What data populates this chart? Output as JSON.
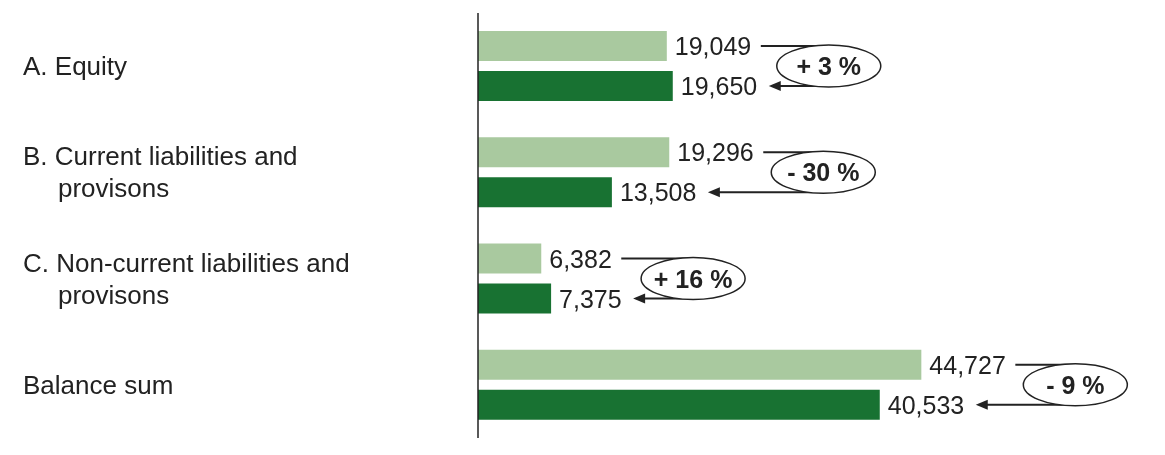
{
  "chart_data": {
    "type": "bar",
    "orientation": "horizontal",
    "categories": [
      "A. Equity",
      "B. Current liabilities and provisons",
      "C. Non-current liabilities and provisons",
      "Balance sum"
    ],
    "series": [
      {
        "color": "#a9c99f",
        "values": [
          19049,
          19296,
          6382,
          44727
        ],
        "value_labels": [
          "19,049",
          "19,296",
          "6,382",
          "44,727"
        ]
      },
      {
        "color": "#187232",
        "values": [
          19650,
          13508,
          7375,
          40533
        ],
        "value_labels": [
          "19,650",
          "13,508",
          "7,375",
          "40,533"
        ]
      }
    ],
    "annotations": [
      "+ 3 %",
      "- 30 %",
      "+ 16 %",
      "- 9 %"
    ]
  }
}
